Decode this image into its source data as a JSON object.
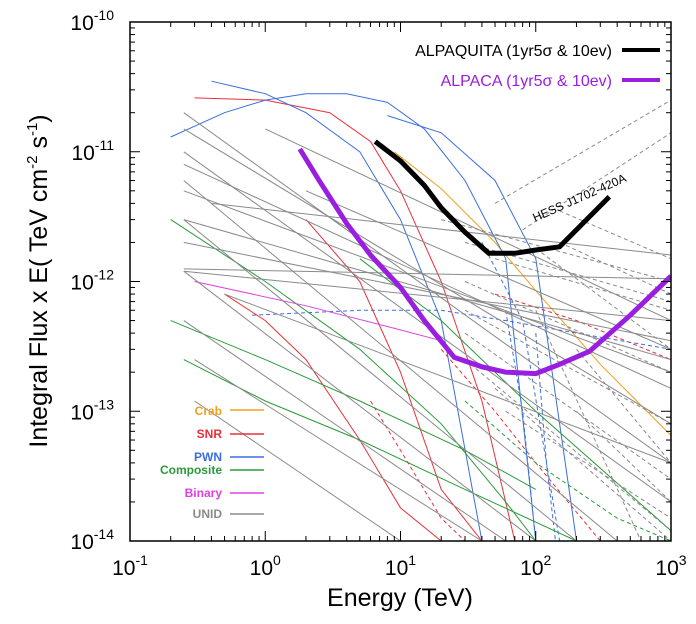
{
  "chart_data": {
    "type": "line",
    "xlabel": "Energy (TeV)",
    "ylabel_main": "Integral Flux x E( TeV cm",
    "ylabel_exp1": "-2",
    "ylabel_mid": " s",
    "ylabel_exp2": "-1",
    "ylabel_end": ")",
    "x_scale": "log",
    "y_scale": "log",
    "xlim": [
      0.1,
      1000
    ],
    "ylim": [
      1e-14,
      1e-10
    ],
    "x_ticks": [
      {
        "value": 0.1,
        "base": "10",
        "exp": "-1"
      },
      {
        "value": 1,
        "base": "10",
        "exp": "0"
      },
      {
        "value": 10,
        "base": "10",
        "exp": "1"
      },
      {
        "value": 100,
        "base": "10",
        "exp": "2"
      },
      {
        "value": 1000,
        "base": "10",
        "exp": "3"
      }
    ],
    "y_ticks": [
      {
        "value": 1e-14,
        "base": "10",
        "exp": "-14"
      },
      {
        "value": 1e-13,
        "base": "10",
        "exp": "-13"
      },
      {
        "value": 1e-12,
        "base": "10",
        "exp": "-12"
      },
      {
        "value": 1e-11,
        "base": "10",
        "exp": "-11"
      },
      {
        "value": 1e-10,
        "base": "10",
        "exp": "-10"
      }
    ],
    "legend_position": "top-right",
    "series": [
      {
        "name": "ALPAQUITA (1yr5σ & 10ev)",
        "color": "#000000",
        "x": [
          6.5,
          10,
          15,
          20,
          30,
          45,
          70,
          100,
          150,
          350
        ],
        "y": [
          1.2e-11,
          8.5e-12,
          5.5e-12,
          3.7e-12,
          2.4e-12,
          1.65e-12,
          1.65e-12,
          1.75e-12,
          1.85e-12,
          4.5e-12
        ]
      },
      {
        "name": "ALPACA (1yr5σ & 10ev)",
        "color": "#9a1ee0",
        "x": [
          1.8,
          2.5,
          4,
          6,
          10,
          15,
          25,
          40,
          60,
          100,
          150,
          250,
          500,
          1000
        ],
        "y": [
          1.05e-11,
          6e-12,
          2.8e-12,
          1.6e-12,
          9e-13,
          5e-13,
          2.6e-13,
          2.2e-13,
          2e-13,
          1.95e-13,
          2.3e-13,
          2.9e-13,
          5.5e-13,
          1.1e-12
        ]
      }
    ],
    "annotations": [
      {
        "text": "HESS J1702-420A"
      }
    ],
    "categories_legend": [
      {
        "name": "Crab",
        "color": "#f0a020"
      },
      {
        "name": "SNR",
        "color": "#e8303a"
      },
      {
        "name": "PWN",
        "color": "#3a6ee0"
      },
      {
        "name": "Composite",
        "color": "#2a9a3a"
      },
      {
        "name": "Binary",
        "color": "#e040e0"
      },
      {
        "name": "UNID",
        "color": "#8a8a8a"
      }
    ],
    "sources": [
      {
        "type": "Crab",
        "x": [
          9,
          20,
          50,
          100,
          300,
          1000
        ],
        "y": [
          1e-11,
          5.2e-12,
          2e-12,
          8.5e-13,
          2.3e-13,
          6.5e-14
        ],
        "dash": false
      },
      {
        "type": "SNR",
        "x": [
          0.3,
          1,
          3,
          6,
          10,
          20,
          40,
          70
        ],
        "y": [
          2.6e-11,
          2.5e-11,
          2e-11,
          1.2e-11,
          5e-12,
          1e-12,
          1.2e-13,
          1e-14
        ],
        "dash": false
      },
      {
        "type": "SNR",
        "x": [
          0.5,
          1,
          2,
          5,
          10,
          20,
          30
        ],
        "y": [
          8e-13,
          5e-13,
          2.5e-13,
          6e-14,
          1.8e-14,
          1e-14,
          1e-14
        ],
        "dash": false
      },
      {
        "type": "SNR",
        "x": [
          2,
          5,
          10,
          20,
          40
        ],
        "y": [
          3e-12,
          1e-12,
          2e-13,
          2.5e-14,
          1e-14
        ],
        "dash": false
      },
      {
        "type": "SNR",
        "x": [
          6,
          10,
          20,
          30
        ],
        "y": [
          1.2e-13,
          5e-14,
          1.5e-14,
          1e-14
        ],
        "dash": true
      },
      {
        "type": "SNR",
        "x": [
          20,
          50,
          100,
          300,
          1000
        ],
        "y": [
          3e-13,
          1e-13,
          4e-14,
          1e-14,
          1e-14
        ],
        "dash": true
      },
      {
        "type": "SNR",
        "x": [
          50,
          200,
          1000
        ],
        "y": [
          8e-13,
          5e-13,
          2.5e-13
        ],
        "dash": true
      },
      {
        "type": "PWN",
        "x": [
          0.2,
          0.5,
          1,
          2,
          4,
          8,
          15,
          30,
          60,
          100
        ],
        "y": [
          1.3e-11,
          2e-11,
          2.5e-11,
          2.8e-11,
          2.8e-11,
          2.4e-11,
          1.5e-11,
          6e-12,
          1.5e-12,
          1e-14
        ],
        "dash": false
      },
      {
        "type": "PWN",
        "x": [
          0.4,
          1,
          2,
          5,
          10,
          20,
          40
        ],
        "y": [
          3.5e-11,
          2.8e-11,
          2e-11,
          1e-11,
          3e-12,
          5e-13,
          1e-14
        ],
        "dash": false
      },
      {
        "type": "PWN",
        "x": [
          8,
          20,
          50,
          100,
          200
        ],
        "y": [
          1.9e-11,
          1.4e-11,
          6e-12,
          1.5e-12,
          1e-14
        ],
        "dash": false
      },
      {
        "type": "PWN",
        "x": [
          0.8,
          5,
          20,
          60,
          200,
          1000
        ],
        "y": [
          5.5e-13,
          6e-13,
          6e-13,
          5e-13,
          4e-13,
          3e-13
        ],
        "dash": true
      },
      {
        "type": "PWN",
        "x": [
          60,
          80,
          100
        ],
        "y": [
          6e-13,
          1e-13,
          1e-14
        ],
        "dash": true
      },
      {
        "type": "PWN",
        "x": [
          100,
          120,
          140
        ],
        "y": [
          4e-13,
          4e-14,
          1e-14
        ],
        "dash": true
      },
      {
        "type": "PWN",
        "x": [
          40,
          80,
          150
        ],
        "y": [
          2e-12,
          5e-13,
          1e-14
        ],
        "dash": true
      },
      {
        "type": "Composite",
        "x": [
          0.2,
          1,
          5,
          20,
          60,
          100
        ],
        "y": [
          3e-12,
          1e-12,
          3e-13,
          8e-14,
          2e-14,
          1e-14
        ],
        "dash": false
      },
      {
        "type": "Composite",
        "x": [
          0.2,
          1,
          5,
          30,
          100
        ],
        "y": [
          5e-13,
          2.5e-13,
          1.2e-13,
          5e-14,
          2.5e-14
        ],
        "dash": false
      },
      {
        "type": "Composite",
        "x": [
          0.25,
          1,
          5,
          30,
          200
        ],
        "y": [
          2.5e-13,
          1.2e-13,
          6e-14,
          2.5e-14,
          1e-14
        ],
        "dash": false
      },
      {
        "type": "Composite",
        "x": [
          5,
          20,
          100,
          1000
        ],
        "y": [
          1.5e-12,
          5e-13,
          1e-13,
          1.2e-14
        ],
        "dash": false
      },
      {
        "type": "Composite",
        "x": [
          30,
          100,
          400,
          1000
        ],
        "y": [
          1.2e-13,
          4e-14,
          1.5e-14,
          1e-14
        ],
        "dash": true
      },
      {
        "type": "Binary",
        "x": [
          0.3,
          2,
          8,
          20
        ],
        "y": [
          1e-12,
          6.5e-13,
          4.5e-13,
          3.5e-13
        ],
        "dash": false
      },
      {
        "type": "UNID",
        "x": [
          0.25,
          1000
        ],
        "y": [
          1.5e-11,
          8e-14
        ],
        "dash": false
      },
      {
        "type": "UNID",
        "x": [
          0.25,
          1000
        ],
        "y": [
          8e-12,
          1.5e-13
        ],
        "dash": false
      },
      {
        "type": "UNID",
        "x": [
          0.25,
          1000
        ],
        "y": [
          5e-12,
          2e-13
        ],
        "dash": false
      },
      {
        "type": "UNID",
        "x": [
          0.25,
          1000
        ],
        "y": [
          3e-12,
          2.5e-13
        ],
        "dash": false
      },
      {
        "type": "UNID",
        "x": [
          0.25,
          1000
        ],
        "y": [
          2e-12,
          3.5e-13
        ],
        "dash": false
      },
      {
        "type": "UNID",
        "x": [
          0.25,
          1000
        ],
        "y": [
          1.2e-12,
          5e-13
        ],
        "dash": false
      },
      {
        "type": "UNID",
        "x": [
          0.25,
          1000
        ],
        "y": [
          1.25e-12,
          1.05e-12
        ],
        "dash": false
      },
      {
        "type": "UNID",
        "x": [
          0.25,
          1000
        ],
        "y": [
          1e-11,
          2e-14
        ],
        "dash": false
      },
      {
        "type": "UNID",
        "x": [
          0.25,
          1000
        ],
        "y": [
          2e-11,
          4e-14
        ],
        "dash": false
      },
      {
        "type": "UNID",
        "x": [
          0.25,
          400
        ],
        "y": [
          6e-12,
          1e-14
        ],
        "dash": false
      },
      {
        "type": "UNID",
        "x": [
          0.25,
          200
        ],
        "y": [
          3e-12,
          1e-14
        ],
        "dash": false
      },
      {
        "type": "UNID",
        "x": [
          0.25,
          100
        ],
        "y": [
          1.2e-12,
          1e-14
        ],
        "dash": false
      },
      {
        "type": "UNID",
        "x": [
          0.25,
          60
        ],
        "y": [
          5e-13,
          1e-14
        ],
        "dash": false
      },
      {
        "type": "UNID",
        "x": [
          0.3,
          40
        ],
        "y": [
          2.5e-13,
          1e-14
        ],
        "dash": false
      },
      {
        "type": "UNID",
        "x": [
          0.3,
          10
        ],
        "y": [
          1.2e-13,
          1e-14
        ],
        "dash": false
      },
      {
        "type": "UNID",
        "x": [
          0.4,
          1000
        ],
        "y": [
          4e-12,
          1.6e-12
        ],
        "dash": false
      },
      {
        "type": "UNID",
        "x": [
          1,
          1000
        ],
        "y": [
          1.5e-11,
          5e-13
        ],
        "dash": false
      },
      {
        "type": "UNID",
        "x": [
          2,
          1000
        ],
        "y": [
          5e-12,
          3e-13
        ],
        "dash": false
      },
      {
        "type": "UNID",
        "x": [
          0.5,
          1000
        ],
        "y": [
          8e-13,
          4e-14
        ],
        "dash": false
      },
      {
        "type": "UNID",
        "x": [
          20,
          1000
        ],
        "y": [
          3e-12,
          1e-12
        ],
        "dash": true
      },
      {
        "type": "UNID",
        "x": [
          30,
          1000
        ],
        "y": [
          2e-12,
          7e-13
        ],
        "dash": true
      },
      {
        "type": "UNID",
        "x": [
          30,
          1000
        ],
        "y": [
          1e-12,
          2e-13
        ],
        "dash": true
      },
      {
        "type": "UNID",
        "x": [
          30,
          1000
        ],
        "y": [
          6e-13,
          8e-14
        ],
        "dash": true
      },
      {
        "type": "UNID",
        "x": [
          30,
          1000
        ],
        "y": [
          4e-13,
          3e-14
        ],
        "dash": true
      },
      {
        "type": "UNID",
        "x": [
          30,
          1000
        ],
        "y": [
          2.5e-13,
          1.2e-14
        ],
        "dash": true
      },
      {
        "type": "UNID",
        "x": [
          50,
          1000
        ],
        "y": [
          1.5e-13,
          1e-14
        ],
        "dash": true
      },
      {
        "type": "UNID",
        "x": [
          50,
          1000
        ],
        "y": [
          1.5e-12,
          6e-13
        ],
        "dash": true
      },
      {
        "type": "UNID",
        "x": [
          150,
          1000
        ],
        "y": [
          2e-12,
          8e-13
        ],
        "dash": true
      },
      {
        "type": "UNID",
        "x": [
          150,
          1000
        ],
        "y": [
          3.5e-12,
          1.5e-12
        ],
        "dash": true
      },
      {
        "type": "UNID",
        "x": [
          60,
          1000
        ],
        "y": [
          1e-13,
          1.5e-14
        ],
        "dash": true
      },
      {
        "type": "UNID",
        "x": [
          100,
          1000
        ],
        "y": [
          1.8e-12,
          3e-13
        ],
        "dash": true
      },
      {
        "type": "UNID",
        "x": [
          100,
          600
        ],
        "y": [
          6e-13,
          1e-14
        ],
        "dash": true
      },
      {
        "type": "UNID",
        "x": [
          200,
          1000
        ],
        "y": [
          3e-13,
          4e-14
        ],
        "dash": true
      },
      {
        "type": "UNID",
        "x": [
          200,
          1000
        ],
        "y": [
          1e-13,
          2e-14
        ],
        "dash": true
      },
      {
        "type": "UNID",
        "x": [
          50,
          1000
        ],
        "y": [
          4e-12,
          2.5e-11
        ],
        "dash": true
      },
      {
        "type": "UNID",
        "x": [
          80,
          1000
        ],
        "y": [
          2.5e-12,
          1.4e-11
        ],
        "dash": true
      }
    ]
  }
}
